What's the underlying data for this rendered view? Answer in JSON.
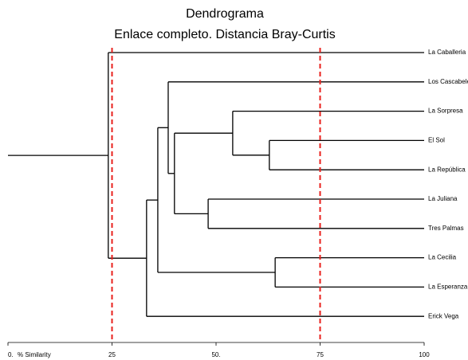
{
  "chart_data": {
    "type": "dendrogram",
    "title": "Dendrograma",
    "subtitle": "Enlace completo. Distancia Bray-Curtis",
    "xlabel": "% Similarity",
    "xlim": [
      0,
      100
    ],
    "xticks": [
      {
        "value": 0,
        "label": "0."
      },
      25,
      {
        "value": 50,
        "label": "50."
      },
      75,
      100
    ],
    "cut_lines": [
      25,
      75
    ],
    "cut_color": "#e8201c",
    "color": "#000000",
    "tree": {
      "similarity": 24.1,
      "children": [
        {
          "label": "La Caballeria"
        },
        {
          "similarity": 33.3,
          "children": [
            {
              "similarity": 36.0,
              "children": [
                {
                  "similarity": 38.5,
                  "children": [
                    {
                      "label": "Los Cascabeles"
                    },
                    {
                      "similarity": 40.0,
                      "children": [
                        {
                          "similarity": 54.0,
                          "children": [
                            {
                              "label": "La Sorpresa"
                            },
                            {
                              "similarity": 62.8,
                              "children": [
                                {
                                  "label": "El Sol"
                                },
                                {
                                  "label": "La República"
                                }
                              ]
                            }
                          ]
                        },
                        {
                          "similarity": 48.1,
                          "children": [
                            {
                              "label": "La Juliana"
                            },
                            {
                              "label": "Tres Palmas"
                            }
                          ]
                        }
                      ]
                    }
                  ]
                },
                {
                  "similarity": 64.2,
                  "children": [
                    {
                      "label": "La Cecilia"
                    },
                    {
                      "label": "La Esperanza"
                    }
                  ]
                }
              ]
            },
            {
              "label": "Erick Vega"
            }
          ]
        }
      ]
    }
  }
}
